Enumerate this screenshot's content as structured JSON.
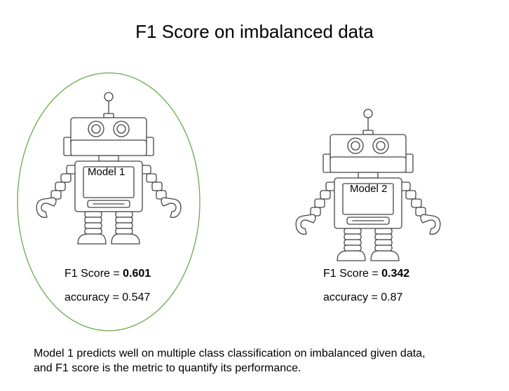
{
  "title": "F1 Score on imbalanced data",
  "models": [
    {
      "label": "Model 1",
      "f1_prefix": "F1 Score = ",
      "f1_value": "0.601",
      "accuracy": "accuracy = 0.547",
      "highlighted": true
    },
    {
      "label": "Model 2",
      "f1_prefix": "F1 Score = ",
      "f1_value": "0.342",
      "accuracy": "accuracy = 0.87",
      "highlighted": false
    }
  ],
  "caption": {
    "line1": "Model 1 predicts well on multiple class classification on imbalanced given data,",
    "line2": "and F1 score is the metric to quantify its performance."
  },
  "colors": {
    "highlight_ellipse": "#6aaa4a",
    "robot_stroke": "#444444"
  },
  "icons": [
    "robot-icon",
    "robot-icon"
  ]
}
